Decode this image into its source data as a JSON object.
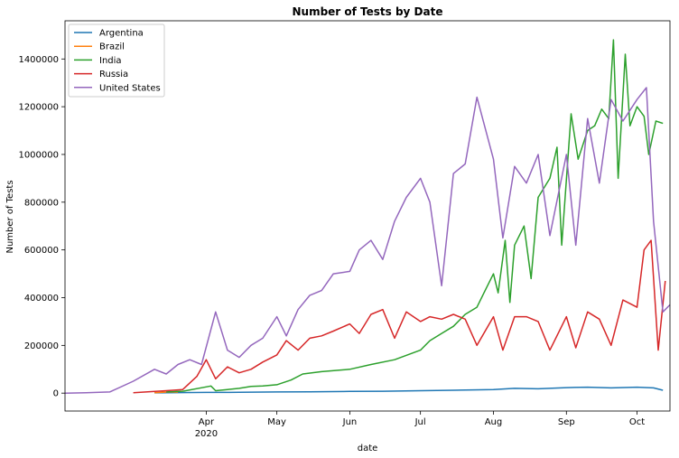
{
  "chart_data": {
    "type": "line",
    "title": "Number of Tests by Date",
    "xlabel": "date",
    "ylabel": "Number of Tests",
    "x_range": [
      "2020-02-01",
      "2020-10-15"
    ],
    "ylim": [
      -75000,
      1560000
    ],
    "x_ticks": [
      {
        "date": "2020-04-01",
        "label": "Apr",
        "sublabel": "2020"
      },
      {
        "date": "2020-05-01",
        "label": "May",
        "sublabel": ""
      },
      {
        "date": "2020-06-01",
        "label": "Jun",
        "sublabel": ""
      },
      {
        "date": "2020-07-01",
        "label": "Jul",
        "sublabel": ""
      },
      {
        "date": "2020-08-01",
        "label": "Aug",
        "sublabel": ""
      },
      {
        "date": "2020-09-01",
        "label": "Sep",
        "sublabel": ""
      },
      {
        "date": "2020-10-01",
        "label": "Oct",
        "sublabel": ""
      }
    ],
    "y_ticks": [
      0,
      200000,
      400000,
      600000,
      800000,
      1000000,
      1200000,
      1400000
    ],
    "grid": false,
    "legend_position": "top-left",
    "series": [
      {
        "name": "Argentina",
        "color": "#1f77b4",
        "points": [
          [
            "2020-03-10",
            1000
          ],
          [
            "2020-04-01",
            3000
          ],
          [
            "2020-04-15",
            3500
          ],
          [
            "2020-05-01",
            5000
          ],
          [
            "2020-05-15",
            5500
          ],
          [
            "2020-06-01",
            7000
          ],
          [
            "2020-06-15",
            8000
          ],
          [
            "2020-07-01",
            10000
          ],
          [
            "2020-07-15",
            12000
          ],
          [
            "2020-08-01",
            15000
          ],
          [
            "2020-08-10",
            20000
          ],
          [
            "2020-08-20",
            18000
          ],
          [
            "2020-09-01",
            23000
          ],
          [
            "2020-09-10",
            25000
          ],
          [
            "2020-09-20",
            22000
          ],
          [
            "2020-10-01",
            25000
          ],
          [
            "2020-10-08",
            22000
          ],
          [
            "2020-10-12",
            12000
          ]
        ]
      },
      {
        "name": "Brazil",
        "color": "#ff7f0e",
        "points": [
          [
            "2020-03-10",
            2000
          ],
          [
            "2020-03-16",
            5000
          ],
          [
            "2020-03-20",
            4000
          ]
        ]
      },
      {
        "name": "India",
        "color": "#2ca02c",
        "points": [
          [
            "2020-03-15",
            5000
          ],
          [
            "2020-03-22",
            8000
          ],
          [
            "2020-04-03",
            30000
          ],
          [
            "2020-04-05",
            10000
          ],
          [
            "2020-04-10",
            15000
          ],
          [
            "2020-04-15",
            20000
          ],
          [
            "2020-04-20",
            28000
          ],
          [
            "2020-04-25",
            30000
          ],
          [
            "2020-05-01",
            35000
          ],
          [
            "2020-05-07",
            55000
          ],
          [
            "2020-05-12",
            80000
          ],
          [
            "2020-05-20",
            90000
          ],
          [
            "2020-06-01",
            100000
          ],
          [
            "2020-06-10",
            120000
          ],
          [
            "2020-06-20",
            140000
          ],
          [
            "2020-07-01",
            180000
          ],
          [
            "2020-07-05",
            220000
          ],
          [
            "2020-07-10",
            250000
          ],
          [
            "2020-07-15",
            280000
          ],
          [
            "2020-07-20",
            330000
          ],
          [
            "2020-07-25",
            360000
          ],
          [
            "2020-07-28",
            420000
          ],
          [
            "2020-08-01",
            500000
          ],
          [
            "2020-08-03",
            420000
          ],
          [
            "2020-08-06",
            640000
          ],
          [
            "2020-08-08",
            380000
          ],
          [
            "2020-08-10",
            620000
          ],
          [
            "2020-08-14",
            700000
          ],
          [
            "2020-08-17",
            480000
          ],
          [
            "2020-08-20",
            820000
          ],
          [
            "2020-08-25",
            900000
          ],
          [
            "2020-08-28",
            1030000
          ],
          [
            "2020-08-30",
            620000
          ],
          [
            "2020-09-03",
            1170000
          ],
          [
            "2020-09-06",
            980000
          ],
          [
            "2020-09-10",
            1100000
          ],
          [
            "2020-09-13",
            1120000
          ],
          [
            "2020-09-16",
            1190000
          ],
          [
            "2020-09-19",
            1150000
          ],
          [
            "2020-09-21",
            1480000
          ],
          [
            "2020-09-23",
            900000
          ],
          [
            "2020-09-26",
            1420000
          ],
          [
            "2020-09-28",
            1120000
          ],
          [
            "2020-10-01",
            1200000
          ],
          [
            "2020-10-04",
            1160000
          ],
          [
            "2020-10-06",
            1000000
          ],
          [
            "2020-10-09",
            1140000
          ],
          [
            "2020-10-12",
            1130000
          ]
        ]
      },
      {
        "name": "Russia",
        "color": "#d62728",
        "points": [
          [
            "2020-03-01",
            2000
          ],
          [
            "2020-03-15",
            10000
          ],
          [
            "2020-03-22",
            15000
          ],
          [
            "2020-03-28",
            70000
          ],
          [
            "2020-04-01",
            140000
          ],
          [
            "2020-04-05",
            60000
          ],
          [
            "2020-04-10",
            110000
          ],
          [
            "2020-04-15",
            85000
          ],
          [
            "2020-04-20",
            100000
          ],
          [
            "2020-04-25",
            130000
          ],
          [
            "2020-05-01",
            160000
          ],
          [
            "2020-05-05",
            220000
          ],
          [
            "2020-05-10",
            180000
          ],
          [
            "2020-05-15",
            230000
          ],
          [
            "2020-05-20",
            240000
          ],
          [
            "2020-05-25",
            260000
          ],
          [
            "2020-06-01",
            290000
          ],
          [
            "2020-06-05",
            250000
          ],
          [
            "2020-06-10",
            330000
          ],
          [
            "2020-06-15",
            350000
          ],
          [
            "2020-06-20",
            230000
          ],
          [
            "2020-06-25",
            340000
          ],
          [
            "2020-07-01",
            300000
          ],
          [
            "2020-07-05",
            320000
          ],
          [
            "2020-07-10",
            310000
          ],
          [
            "2020-07-15",
            330000
          ],
          [
            "2020-07-20",
            310000
          ],
          [
            "2020-07-25",
            200000
          ],
          [
            "2020-08-01",
            320000
          ],
          [
            "2020-08-05",
            180000
          ],
          [
            "2020-08-10",
            320000
          ],
          [
            "2020-08-15",
            320000
          ],
          [
            "2020-08-20",
            300000
          ],
          [
            "2020-08-25",
            180000
          ],
          [
            "2020-09-01",
            320000
          ],
          [
            "2020-09-05",
            190000
          ],
          [
            "2020-09-10",
            340000
          ],
          [
            "2020-09-15",
            310000
          ],
          [
            "2020-09-20",
            200000
          ],
          [
            "2020-09-25",
            390000
          ],
          [
            "2020-10-01",
            360000
          ],
          [
            "2020-10-04",
            600000
          ],
          [
            "2020-10-07",
            640000
          ],
          [
            "2020-10-10",
            180000
          ],
          [
            "2020-10-13",
            470000
          ]
        ]
      },
      {
        "name": "United States",
        "color": "#9467bd",
        "points": [
          [
            "2020-02-01",
            0
          ],
          [
            "2020-02-10",
            2000
          ],
          [
            "2020-02-20",
            5000
          ],
          [
            "2020-03-01",
            50000
          ],
          [
            "2020-03-10",
            100000
          ],
          [
            "2020-03-15",
            80000
          ],
          [
            "2020-03-20",
            120000
          ],
          [
            "2020-03-25",
            140000
          ],
          [
            "2020-03-30",
            120000
          ],
          [
            "2020-04-05",
            340000
          ],
          [
            "2020-04-10",
            180000
          ],
          [
            "2020-04-15",
            150000
          ],
          [
            "2020-04-20",
            200000
          ],
          [
            "2020-04-25",
            230000
          ],
          [
            "2020-05-01",
            320000
          ],
          [
            "2020-05-05",
            240000
          ],
          [
            "2020-05-10",
            350000
          ],
          [
            "2020-05-15",
            410000
          ],
          [
            "2020-05-20",
            430000
          ],
          [
            "2020-05-25",
            500000
          ],
          [
            "2020-06-01",
            510000
          ],
          [
            "2020-06-05",
            600000
          ],
          [
            "2020-06-10",
            640000
          ],
          [
            "2020-06-15",
            560000
          ],
          [
            "2020-06-20",
            720000
          ],
          [
            "2020-06-25",
            820000
          ],
          [
            "2020-07-01",
            900000
          ],
          [
            "2020-07-05",
            800000
          ],
          [
            "2020-07-10",
            450000
          ],
          [
            "2020-07-15",
            920000
          ],
          [
            "2020-07-20",
            960000
          ],
          [
            "2020-07-25",
            1240000
          ],
          [
            "2020-08-01",
            980000
          ],
          [
            "2020-08-05",
            650000
          ],
          [
            "2020-08-10",
            950000
          ],
          [
            "2020-08-15",
            880000
          ],
          [
            "2020-08-20",
            1000000
          ],
          [
            "2020-08-25",
            660000
          ],
          [
            "2020-09-01",
            1000000
          ],
          [
            "2020-09-05",
            620000
          ],
          [
            "2020-09-10",
            1150000
          ],
          [
            "2020-09-15",
            880000
          ],
          [
            "2020-09-20",
            1230000
          ],
          [
            "2020-09-25",
            1140000
          ],
          [
            "2020-10-01",
            1230000
          ],
          [
            "2020-10-05",
            1280000
          ],
          [
            "2020-10-08",
            720000
          ],
          [
            "2020-10-12",
            340000
          ],
          [
            "2020-10-15",
            370000
          ]
        ]
      }
    ]
  }
}
